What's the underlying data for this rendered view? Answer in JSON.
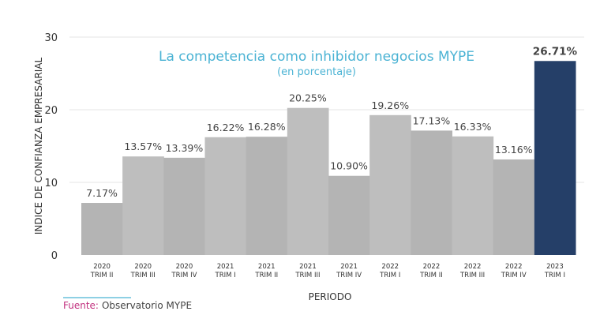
{
  "chart_data": {
    "type": "bar",
    "title": "La competencia como inhibidor negocios MYPE",
    "subtitle": "(en porcentaje)",
    "xlabel": "PERIODO",
    "ylabel": "INDICE DE CONFIANZA EMPRESARIAL",
    "ylim": [
      0,
      30
    ],
    "yticks": [
      0,
      10,
      20,
      30
    ],
    "grid": true,
    "categories": [
      [
        "2020",
        "TRIM II"
      ],
      [
        "2020",
        "TRIM III"
      ],
      [
        "2020",
        "TRIM IV"
      ],
      [
        "2021",
        "TRIM I"
      ],
      [
        "2021",
        "TRIM II"
      ],
      [
        "2021",
        "TRIM III"
      ],
      [
        "2021",
        "TRIM IV"
      ],
      [
        "2022",
        "TRIM I"
      ],
      [
        "2022",
        "TRIM II"
      ],
      [
        "2022",
        "TRIM III"
      ],
      [
        "2022",
        "TRIM IV"
      ],
      [
        "2023",
        "TRIM I"
      ]
    ],
    "values": [
      7.17,
      13.57,
      13.39,
      16.22,
      16.28,
      20.25,
      10.9,
      19.26,
      17.13,
      16.33,
      13.16,
      26.71
    ],
    "labels": [
      "7.17%",
      "13.57%",
      "13.39%",
      "16.22%",
      "16.28%",
      "20.25%",
      "10.90%",
      "19.26%",
      "17.13%",
      "16.33%",
      "13.16%",
      "26.71%"
    ],
    "highlight_index": 11,
    "colors": {
      "bar_a": "#b4b4b4",
      "bar_b": "#bebebe",
      "highlight": "#253f68",
      "title": "#4bb3d4"
    }
  },
  "source": {
    "label": "Fuente:",
    "text": "Observatorio MYPE",
    "label_color": "#c2317f"
  }
}
